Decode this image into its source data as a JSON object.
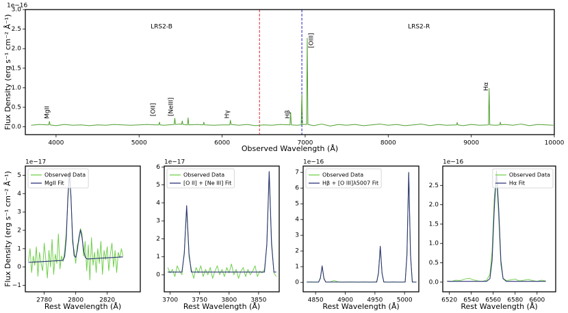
{
  "chart_data": [
    {
      "type": "line",
      "y_offset_label": "1e−16",
      "x_label": "Observed Wavelength (Å)",
      "y_label": "Flux Density (erg s⁻¹ cm⁻² Å⁻¹)",
      "xlim": [
        3630,
        10000
      ],
      "ylim": [
        -0.2,
        3.0
      ],
      "xticks": [
        4000,
        5000,
        6000,
        7000,
        8000,
        9000,
        10000
      ],
      "yticks": [
        {
          "value": 0,
          "label": "0.0"
        },
        0.5,
        {
          "value": 1,
          "label": "1.0"
        },
        1.5,
        {
          "value": 2,
          "label": "2.0"
        },
        2.5,
        {
          "value": 3,
          "label": "3.0"
        }
      ],
      "vlines": [
        {
          "x": 6450,
          "color": "#e8262b",
          "linestyle": "dashed"
        },
        {
          "x": 6960,
          "color": "#1f1fc8",
          "linestyle": "dashed"
        }
      ],
      "annotations": [
        {
          "text": "LRS2-B",
          "x": 5270,
          "y": 2.56,
          "rotation": 0
        },
        {
          "text": "LRS2-R",
          "x": 8370,
          "y": 2.56,
          "rotation": 0
        },
        {
          "text": "MgII",
          "x": 3893,
          "y": 0.37,
          "rotation": 90
        },
        {
          "text": "[OII]",
          "x": 5170,
          "y": 0.44,
          "rotation": 90
        },
        {
          "text": "[NeIII]",
          "x": 5385,
          "y": 0.51,
          "rotation": 90
        },
        {
          "text": "Hγ",
          "x": 6060,
          "y": 0.32,
          "rotation": 90
        },
        {
          "text": "Hβ",
          "x": 6790,
          "y": 0.32,
          "rotation": 90
        },
        {
          "text": "[OIII]",
          "x": 7075,
          "y": 2.21,
          "rotation": 90
        },
        {
          "text": "Hα",
          "x": 9180,
          "y": 1.03,
          "rotation": 90
        }
      ],
      "x": [
        3700,
        3800,
        3900,
        3912,
        3920,
        3928,
        4000,
        4100,
        4200,
        4300,
        4400,
        4500,
        4600,
        4700,
        4800,
        4900,
        5000,
        5100,
        5200,
        5237,
        5245,
        5253,
        5300,
        5422,
        5430,
        5438,
        5500,
        5512,
        5520,
        5528,
        5582,
        5590,
        5598,
        5700,
        5772,
        5780,
        5788,
        5900,
        6000,
        6092,
        6100,
        6108,
        6200,
        6300,
        6400,
        6500,
        6600,
        6700,
        6817,
        6825,
        6833,
        6900,
        6952,
        6960,
        6968,
        7017,
        7025,
        7033,
        7100,
        7200,
        7300,
        7400,
        7500,
        7600,
        7700,
        7800,
        7900,
        8000,
        8100,
        8200,
        8300,
        8400,
        8500,
        8600,
        8700,
        8822,
        8830,
        8838,
        8900,
        9000,
        9100,
        9207,
        9215,
        9223,
        9300,
        9342,
        9350,
        9358,
        9400,
        9500,
        9600,
        9700,
        9800,
        9900,
        9990
      ],
      "series": [
        {
          "color": "#4f9f2f",
          "values": [
            0.04,
            0.06,
            0.05,
            0.05,
            0.14,
            0.05,
            0.03,
            0.06,
            0.04,
            0.05,
            0.03,
            0.05,
            0.04,
            0.06,
            0.05,
            0.04,
            0.05,
            0.06,
            0.05,
            0.05,
            0.12,
            0.05,
            0.04,
            0.06,
            0.22,
            0.06,
            0.07,
            0.06,
            0.15,
            0.06,
            0.05,
            0.23,
            0.05,
            0.06,
            0.05,
            0.12,
            0.05,
            0.04,
            0.05,
            0.05,
            0.17,
            0.06,
            0.04,
            0.06,
            0.03,
            0.05,
            0.04,
            0.06,
            0.05,
            0.37,
            0.05,
            0.04,
            0.05,
            0.82,
            0.06,
            0.06,
            2.27,
            0.06,
            0.03,
            0.07,
            0.02,
            0.06,
            0.04,
            0.06,
            0.03,
            0.05,
            0.07,
            0.04,
            0.06,
            0.03,
            0.05,
            0.07,
            0.03,
            0.06,
            0.04,
            0.05,
            0.11,
            0.05,
            0.03,
            0.06,
            0.04,
            0.05,
            0.98,
            0.05,
            0.04,
            0.05,
            0.12,
            0.05,
            0.06,
            0.04,
            0.07,
            0.03,
            0.06,
            0.05,
            0.04
          ]
        }
      ]
    },
    {
      "type": "line",
      "y_offset_label": "1e−17",
      "x_label": "Rest Wavelength (Å)",
      "y_label": "Flux Density (erg s⁻¹ cm⁻² Å⁻¹)",
      "xlim": [
        2768,
        2841
      ],
      "ylim": [
        -1.35,
        5.5
      ],
      "legend": "upper left",
      "xticks": [
        2780,
        2800,
        2820
      ],
      "yticks": [
        {
          "value": -1,
          "label": "−1"
        },
        0,
        1,
        2,
        3,
        4,
        5
      ],
      "x": [
        2770,
        2771,
        2772,
        2773,
        2774,
        2775,
        2776,
        2777,
        2778,
        2779,
        2780,
        2781,
        2782,
        2783,
        2784,
        2785,
        2786,
        2787,
        2788,
        2789,
        2790,
        2791,
        2792,
        2793,
        2794,
        2795,
        2796,
        2797,
        2798,
        2799,
        2800,
        2801,
        2802,
        2803,
        2804,
        2805,
        2806,
        2807,
        2808,
        2809,
        2810,
        2811,
        2812,
        2813,
        2814,
        2815,
        2816,
        2817,
        2818,
        2819,
        2820,
        2821,
        2822,
        2823,
        2824,
        2825,
        2826,
        2827,
        2828,
        2829,
        2830
      ],
      "series": [
        {
          "name": "Observed Data",
          "color": "#6fcf4b",
          "values": [
            0.3,
            1.0,
            -0.3,
            0.6,
            0.1,
            1.1,
            -0.5,
            0.8,
            0.2,
            -0.2,
            1.3,
            0.4,
            -0.6,
            0.9,
            0.0,
            1.5,
            -0.4,
            0.7,
            0.2,
            1.8,
            -0.1,
            0.6,
            0.3,
            0.9,
            1.9,
            3.6,
            5.0,
            3.9,
            1.3,
            0.9,
            0.2,
            1.2,
            1.4,
            2.1,
            1.8,
            0.6,
            1.4,
            -0.2,
            1.2,
            -0.7,
            1.6,
            0.1,
            0.8,
            -0.3,
            1.0,
            0.2,
            1.4,
            -0.4,
            0.9,
            0.4,
            1.1,
            -0.2,
            0.7,
            1.3,
            0.0,
            0.9,
            -0.3,
            0.8,
            0.5,
            1.0,
            0.6
          ]
        },
        {
          "name": "MgII Fit",
          "color": "#2c3275",
          "values": [
            0.25,
            0.26,
            0.26,
            0.27,
            0.27,
            0.28,
            0.28,
            0.29,
            0.29,
            0.3,
            0.3,
            0.31,
            0.31,
            0.32,
            0.32,
            0.33,
            0.33,
            0.34,
            0.34,
            0.35,
            0.35,
            0.36,
            0.38,
            0.58,
            1.57,
            3.77,
            5.18,
            3.77,
            1.59,
            0.61,
            0.53,
            0.9,
            1.6,
            2.02,
            1.61,
            0.92,
            0.54,
            0.45,
            0.44,
            0.45,
            0.45,
            0.46,
            0.46,
            0.47,
            0.47,
            0.48,
            0.48,
            0.49,
            0.49,
            0.5,
            0.5,
            0.51,
            0.51,
            0.52,
            0.52,
            0.53,
            0.53,
            0.54,
            0.54,
            0.55,
            0.55
          ]
        }
      ]
    },
    {
      "type": "line",
      "y_offset_label": "1e−17",
      "x_label": "Rest Wavelength (Å)",
      "xlim": [
        3690,
        3885
      ],
      "ylim": [
        -0.95,
        6.05
      ],
      "legend": "upper left",
      "xticks": [
        3700,
        3750,
        3800,
        3850
      ],
      "yticks": [
        0,
        1,
        2,
        3,
        4,
        5,
        6
      ],
      "x": [
        3696,
        3700,
        3704,
        3708,
        3712,
        3716,
        3720,
        3724,
        3728,
        3732,
        3736,
        3740,
        3744,
        3748,
        3752,
        3756,
        3760,
        3764,
        3768,
        3772,
        3776,
        3780,
        3784,
        3788,
        3792,
        3796,
        3800,
        3804,
        3808,
        3812,
        3816,
        3820,
        3824,
        3828,
        3832,
        3836,
        3840,
        3844,
        3848,
        3852,
        3856,
        3860,
        3864,
        3868,
        3872,
        3876,
        3880
      ],
      "series": [
        {
          "name": "Observed Data",
          "color": "#6fcf4b",
          "values": [
            0.4,
            0.1,
            0.3,
            -0.1,
            0.5,
            0.2,
            0.0,
            1.3,
            3.7,
            1.0,
            0.3,
            -0.2,
            0.4,
            0.1,
            0.5,
            -0.1,
            0.3,
            0.0,
            0.4,
            -0.2,
            0.2,
            0.5,
            0.0,
            0.3,
            -0.1,
            0.4,
            0.1,
            0.6,
            0.0,
            0.3,
            -0.2,
            0.2,
            0.4,
            -0.1,
            0.3,
            0.0,
            0.2,
            0.5,
            -0.1,
            0.2,
            0.1,
            0.3,
            1.6,
            5.7,
            1.9,
            0.1,
            -0.1
          ]
        },
        {
          "name": "[O II] + [Ne III] Fit",
          "color": "#2c3275",
          "values": [
            0.15,
            0.15,
            0.15,
            0.15,
            0.15,
            0.15,
            0.15,
            1.18,
            3.85,
            1.18,
            0.15,
            0.15,
            0.15,
            0.15,
            0.15,
            0.15,
            0.15,
            0.15,
            0.15,
            0.15,
            0.15,
            0.15,
            0.15,
            0.15,
            0.15,
            0.15,
            0.15,
            0.15,
            0.15,
            0.15,
            0.15,
            0.15,
            0.15,
            0.15,
            0.15,
            0.15,
            0.15,
            0.15,
            0.15,
            0.15,
            0.15,
            0.15,
            1.71,
            5.75,
            1.71,
            0.15,
            0.15
          ]
        }
      ]
    },
    {
      "type": "line",
      "y_offset_label": "1e−16",
      "x_label": "Rest Wavelength (Å)",
      "xlim": [
        4829,
        5024
      ],
      "ylim": [
        -0.6,
        7.4
      ],
      "legend": "upper left",
      "xticks": [
        4850,
        4900,
        4950,
        5000
      ],
      "yticks": [
        0,
        1,
        2,
        3,
        4,
        5,
        6,
        7
      ],
      "x": [
        4835,
        4842,
        4849,
        4855,
        4858,
        4861,
        4864,
        4867,
        4874,
        4881,
        4888,
        4895,
        4902,
        4909,
        4916,
        4923,
        4930,
        4937,
        4944,
        4950,
        4953,
        4956,
        4959,
        4962,
        4965,
        4968,
        4974,
        4980,
        4986,
        4992,
        4998,
        5001,
        5004,
        5007,
        5010,
        5013,
        5016,
        5020
      ],
      "series": [
        {
          "name": "Observed Data",
          "color": "#6fcf4b",
          "values": [
            0.02,
            0.03,
            0.01,
            0.02,
            0.3,
            1.0,
            0.22,
            0.03,
            0.02,
            0.12,
            0.03,
            0.01,
            0.02,
            0.03,
            0.02,
            0.01,
            0.03,
            0.02,
            0.01,
            0.03,
            0.05,
            0.62,
            2.25,
            0.55,
            0.04,
            0.02,
            0.01,
            0.03,
            0.02,
            0.01,
            0.02,
            0.04,
            1.8,
            6.95,
            1.7,
            0.05,
            0.02,
            0.01
          ]
        },
        {
          "name": "Hβ + [O III]λ5007 Fit",
          "color": "#2c3275",
          "values": [
            0.02,
            0.02,
            0.02,
            0.02,
            0.26,
            1.05,
            0.26,
            0.02,
            0.02,
            0.02,
            0.02,
            0.02,
            0.02,
            0.02,
            0.02,
            0.02,
            0.02,
            0.02,
            0.02,
            0.02,
            0.02,
            0.58,
            2.3,
            0.58,
            0.02,
            0.02,
            0.02,
            0.02,
            0.02,
            0.02,
            0.02,
            0.02,
            1.75,
            7.0,
            1.75,
            0.02,
            0.02,
            0.02
          ]
        }
      ]
    },
    {
      "type": "line",
      "y_offset_label": "1e−16",
      "x_label": "Rest Wavelength (Å)",
      "xlim": [
        6514,
        6617
      ],
      "ylim": [
        -0.25,
        3.0
      ],
      "legend": "upper right",
      "xticks": [
        6520,
        6540,
        6560,
        6580,
        6600
      ],
      "yticks": [
        {
          "value": 0,
          "label": "0.0"
        },
        0.5,
        {
          "value": 1,
          "label": "1.0"
        },
        1.5,
        {
          "value": 2,
          "label": "2.0"
        },
        2.5
      ],
      "x": [
        6518,
        6522,
        6526,
        6530,
        6534,
        6538,
        6542,
        6546,
        6550,
        6554,
        6557,
        6559,
        6561,
        6563,
        6565,
        6567,
        6569,
        6572,
        6576,
        6580,
        6584,
        6588,
        6592,
        6596,
        6600,
        6604,
        6608
      ],
      "series": [
        {
          "name": "Observed Data",
          "color": "#6fcf4b",
          "values": [
            0.03,
            0.02,
            0.05,
            0.04,
            0.08,
            0.1,
            0.06,
            0.03,
            0.02,
            0.05,
            0.2,
            0.8,
            2.2,
            2.75,
            1.7,
            0.45,
            0.1,
            0.04,
            0.06,
            0.08,
            0.03,
            0.05,
            0.07,
            0.04,
            0.02,
            0.05,
            0.03
          ]
        },
        {
          "name": "Hα Fit",
          "color": "#2c3275",
          "values": [
            0.02,
            0.02,
            0.02,
            0.02,
            0.02,
            0.02,
            0.02,
            0.02,
            0.02,
            0.02,
            0.09,
            0.56,
            1.9,
            2.87,
            1.9,
            0.56,
            0.09,
            0.02,
            0.02,
            0.02,
            0.02,
            0.02,
            0.02,
            0.02,
            0.02,
            0.02,
            0.02
          ]
        }
      ]
    }
  ]
}
